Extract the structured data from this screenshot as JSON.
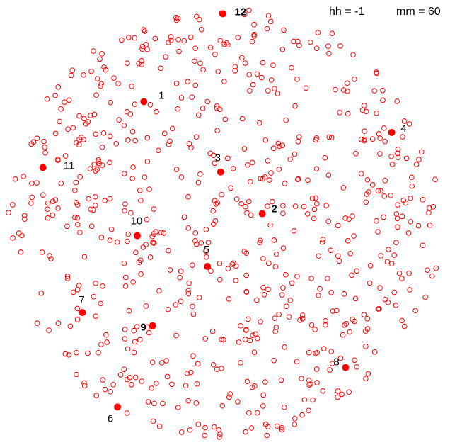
{
  "header": {
    "hh_label": "hh = -1",
    "mm_label": "mm = 60"
  },
  "chart_data": {
    "type": "scatter",
    "title": "",
    "xlabel": "",
    "ylabel": "",
    "grid": false,
    "axes_visible": false,
    "xlim": [
      -1,
      1
    ],
    "ylim": [
      -1,
      1
    ],
    "background_points": {
      "count": 700,
      "marker": "open-circle",
      "color": "#ff0000",
      "shape": "disc"
    },
    "highlight_color": "#ff0000",
    "highlighted_points": [
      {
        "label": "1",
        "x": -0.37,
        "y": 0.55
      },
      {
        "label": "2",
        "x": 0.17,
        "y": 0.04
      },
      {
        "label": "3",
        "x": -0.02,
        "y": 0.23
      },
      {
        "label": "4",
        "x": 0.76,
        "y": 0.41
      },
      {
        "label": "5",
        "x": -0.08,
        "y": -0.2
      },
      {
        "label": "6",
        "x": -0.49,
        "y": -0.84
      },
      {
        "label": "7",
        "x": -0.65,
        "y": -0.41
      },
      {
        "label": "8",
        "x": 0.55,
        "y": -0.66
      },
      {
        "label": "9",
        "x": -0.33,
        "y": -0.47
      },
      {
        "label": "10",
        "x": -0.4,
        "y": -0.06
      },
      {
        "label": "11",
        "x": -0.83,
        "y": 0.25
      },
      {
        "label": "12",
        "x": -0.01,
        "y": 0.95
      }
    ]
  }
}
